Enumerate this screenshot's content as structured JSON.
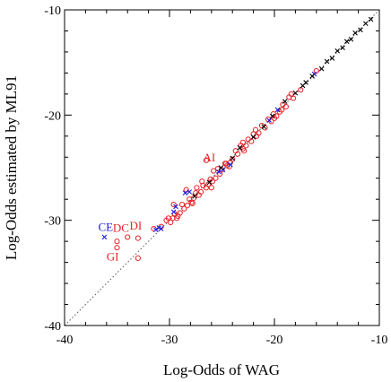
{
  "chart_data": {
    "type": "scatter",
    "xlabel": "Log-Odds of WAG",
    "ylabel": "Log-Odds estimated by ML91",
    "xlim": [
      -40,
      -10
    ],
    "ylim": [
      -40,
      -10
    ],
    "xticks": [
      "-40",
      "-30",
      "-20",
      "-10"
    ],
    "yticks": [
      "-40",
      "-30",
      "-20",
      "-10"
    ],
    "grid": false,
    "reference_line": "y = x (dotted)",
    "colors": {
      "red": "#e8232a",
      "blue": "#1a1ae6",
      "black": "#000000",
      "line": "#555555"
    },
    "series": [
      {
        "marker": "circle",
        "color": "#e8232a",
        "points": [
          [
            -16,
            -15.8
          ],
          [
            -17.5,
            -17.6
          ],
          [
            -18.2,
            -18.4
          ],
          [
            -18.6,
            -18.3
          ],
          [
            -18.9,
            -19.2
          ],
          [
            -19.2,
            -19.0
          ],
          [
            -19.5,
            -19.7
          ],
          [
            -19.8,
            -20.1
          ],
          [
            -20.1,
            -19.9
          ],
          [
            -20.3,
            -20.6
          ],
          [
            -20.6,
            -20.4
          ],
          [
            -20.9,
            -21.2
          ],
          [
            -21.2,
            -21.0
          ],
          [
            -21.5,
            -21.7
          ],
          [
            -21.7,
            -22.0
          ],
          [
            -22.0,
            -21.8
          ],
          [
            -22.2,
            -22.5
          ],
          [
            -22.5,
            -22.3
          ],
          [
            -22.7,
            -22.9
          ],
          [
            -23.0,
            -23.2
          ],
          [
            -23.2,
            -22.9
          ],
          [
            -23.5,
            -23.7
          ],
          [
            -23.7,
            -23.4
          ],
          [
            -24.0,
            -24.2
          ],
          [
            -24.2,
            -24.5
          ],
          [
            -24.5,
            -24.8
          ],
          [
            -24.7,
            -24.6
          ],
          [
            -25.0,
            -25.2
          ],
          [
            -25.2,
            -25.6
          ],
          [
            -25.4,
            -25.1
          ],
          [
            -25.6,
            -26.0
          ],
          [
            -25.9,
            -26.3
          ],
          [
            -26.1,
            -26.1
          ],
          [
            -26.3,
            -26.6
          ],
          [
            -26.5,
            -26.9
          ],
          [
            -26.8,
            -26.7
          ],
          [
            -27.0,
            -27.3
          ],
          [
            -27.2,
            -27.6
          ],
          [
            -27.5,
            -27.4
          ],
          [
            -27.7,
            -27.9
          ],
          [
            -27.9,
            -28.3
          ],
          [
            -28.1,
            -28.0
          ],
          [
            -28.3,
            -28.6
          ],
          [
            -28.6,
            -28.9
          ],
          [
            -28.8,
            -28.5
          ],
          [
            -29.0,
            -29.3
          ],
          [
            -29.2,
            -29.6
          ],
          [
            -29.5,
            -29.4
          ],
          [
            -29.7,
            -29.8
          ],
          [
            -29.9,
            -30.2
          ],
          [
            -30.3,
            -30.0
          ],
          [
            -30.8,
            -30.6
          ],
          [
            -26.5,
            -24.3
          ],
          [
            -24.6,
            -24.6
          ],
          [
            -25.8,
            -25.3
          ],
          [
            -26.9,
            -26.3
          ],
          [
            -27.4,
            -26.9
          ],
          [
            -28.4,
            -27.1
          ],
          [
            -29.6,
            -28.5
          ],
          [
            -30.1,
            -29.8
          ],
          [
            -23.0,
            -22.6
          ],
          [
            -21.8,
            -21.4
          ],
          [
            -20.0,
            -20.3
          ],
          [
            -19.3,
            -19.5
          ],
          [
            -18.4,
            -18.0
          ],
          [
            -22.9,
            -23.4
          ],
          [
            -24.3,
            -24.9
          ],
          [
            -26.0,
            -26.9
          ],
          [
            -27.8,
            -28.4
          ],
          [
            -29.3,
            -29.8
          ],
          [
            -31.5,
            -30.8
          ],
          [
            -33.0,
            -31.7
          ],
          [
            -34.0,
            -31.6
          ],
          [
            -35.0,
            -32.0
          ],
          [
            -35.0,
            -32.6
          ],
          [
            -33.0,
            -33.6
          ]
        ]
      },
      {
        "marker": "x",
        "color": "#1a1ae6",
        "points": [
          [
            -36.2,
            -31.6
          ],
          [
            -31.3,
            -30.9
          ],
          [
            -31.0,
            -30.7
          ],
          [
            -30.8,
            -30.8
          ],
          [
            -29.6,
            -29.2
          ],
          [
            -29.4,
            -28.7
          ],
          [
            -28.5,
            -27.4
          ],
          [
            -28.1,
            -27.3
          ],
          [
            -25.3,
            -25.4
          ],
          [
            -24.9,
            -25.2
          ],
          [
            -24.2,
            -24.7
          ],
          [
            -20.5,
            -20.5
          ],
          [
            -19.7,
            -19.5
          ],
          [
            -16.2,
            -16.1
          ]
        ]
      },
      {
        "marker": "x",
        "color": "#000000",
        "points": [
          [
            -10.8,
            -10.9
          ],
          [
            -11.3,
            -11.3
          ],
          [
            -11.8,
            -11.9
          ],
          [
            -12.3,
            -12.2
          ],
          [
            -12.7,
            -12.8
          ],
          [
            -13.1,
            -13.0
          ],
          [
            -13.5,
            -13.6
          ],
          [
            -14.0,
            -13.9
          ],
          [
            -14.5,
            -14.6
          ],
          [
            -15.0,
            -14.9
          ],
          [
            -15.5,
            -15.6
          ],
          [
            -16.4,
            -16.3
          ],
          [
            -17.0,
            -16.9
          ],
          [
            -17.3,
            -17.2
          ],
          [
            -18.0,
            -17.9
          ],
          [
            -19.0,
            -18.7
          ],
          [
            -20.2,
            -20.1
          ],
          [
            -21.0,
            -21.1
          ],
          [
            -22.0,
            -22.1
          ],
          [
            -23.3,
            -23.1
          ],
          [
            -24.0,
            -24.1
          ],
          [
            -25.1,
            -25.0
          ],
          [
            -26.2,
            -26.4
          ],
          [
            -27.6,
            -27.7
          ]
        ]
      }
    ],
    "annotations": [
      {
        "text": "AI",
        "x": -26.8,
        "y": -24.4,
        "color": "#e8232a"
      },
      {
        "text": "CE",
        "x": -36.8,
        "y": -31.0,
        "color": "#1a1ae6"
      },
      {
        "text": "DC",
        "x": -35.4,
        "y": -31.1,
        "color": "#e8232a"
      },
      {
        "text": "DI",
        "x": -33.8,
        "y": -30.9,
        "color": "#e8232a"
      },
      {
        "text": "GI",
        "x": -36.0,
        "y": -33.8,
        "color": "#e8232a"
      }
    ]
  }
}
